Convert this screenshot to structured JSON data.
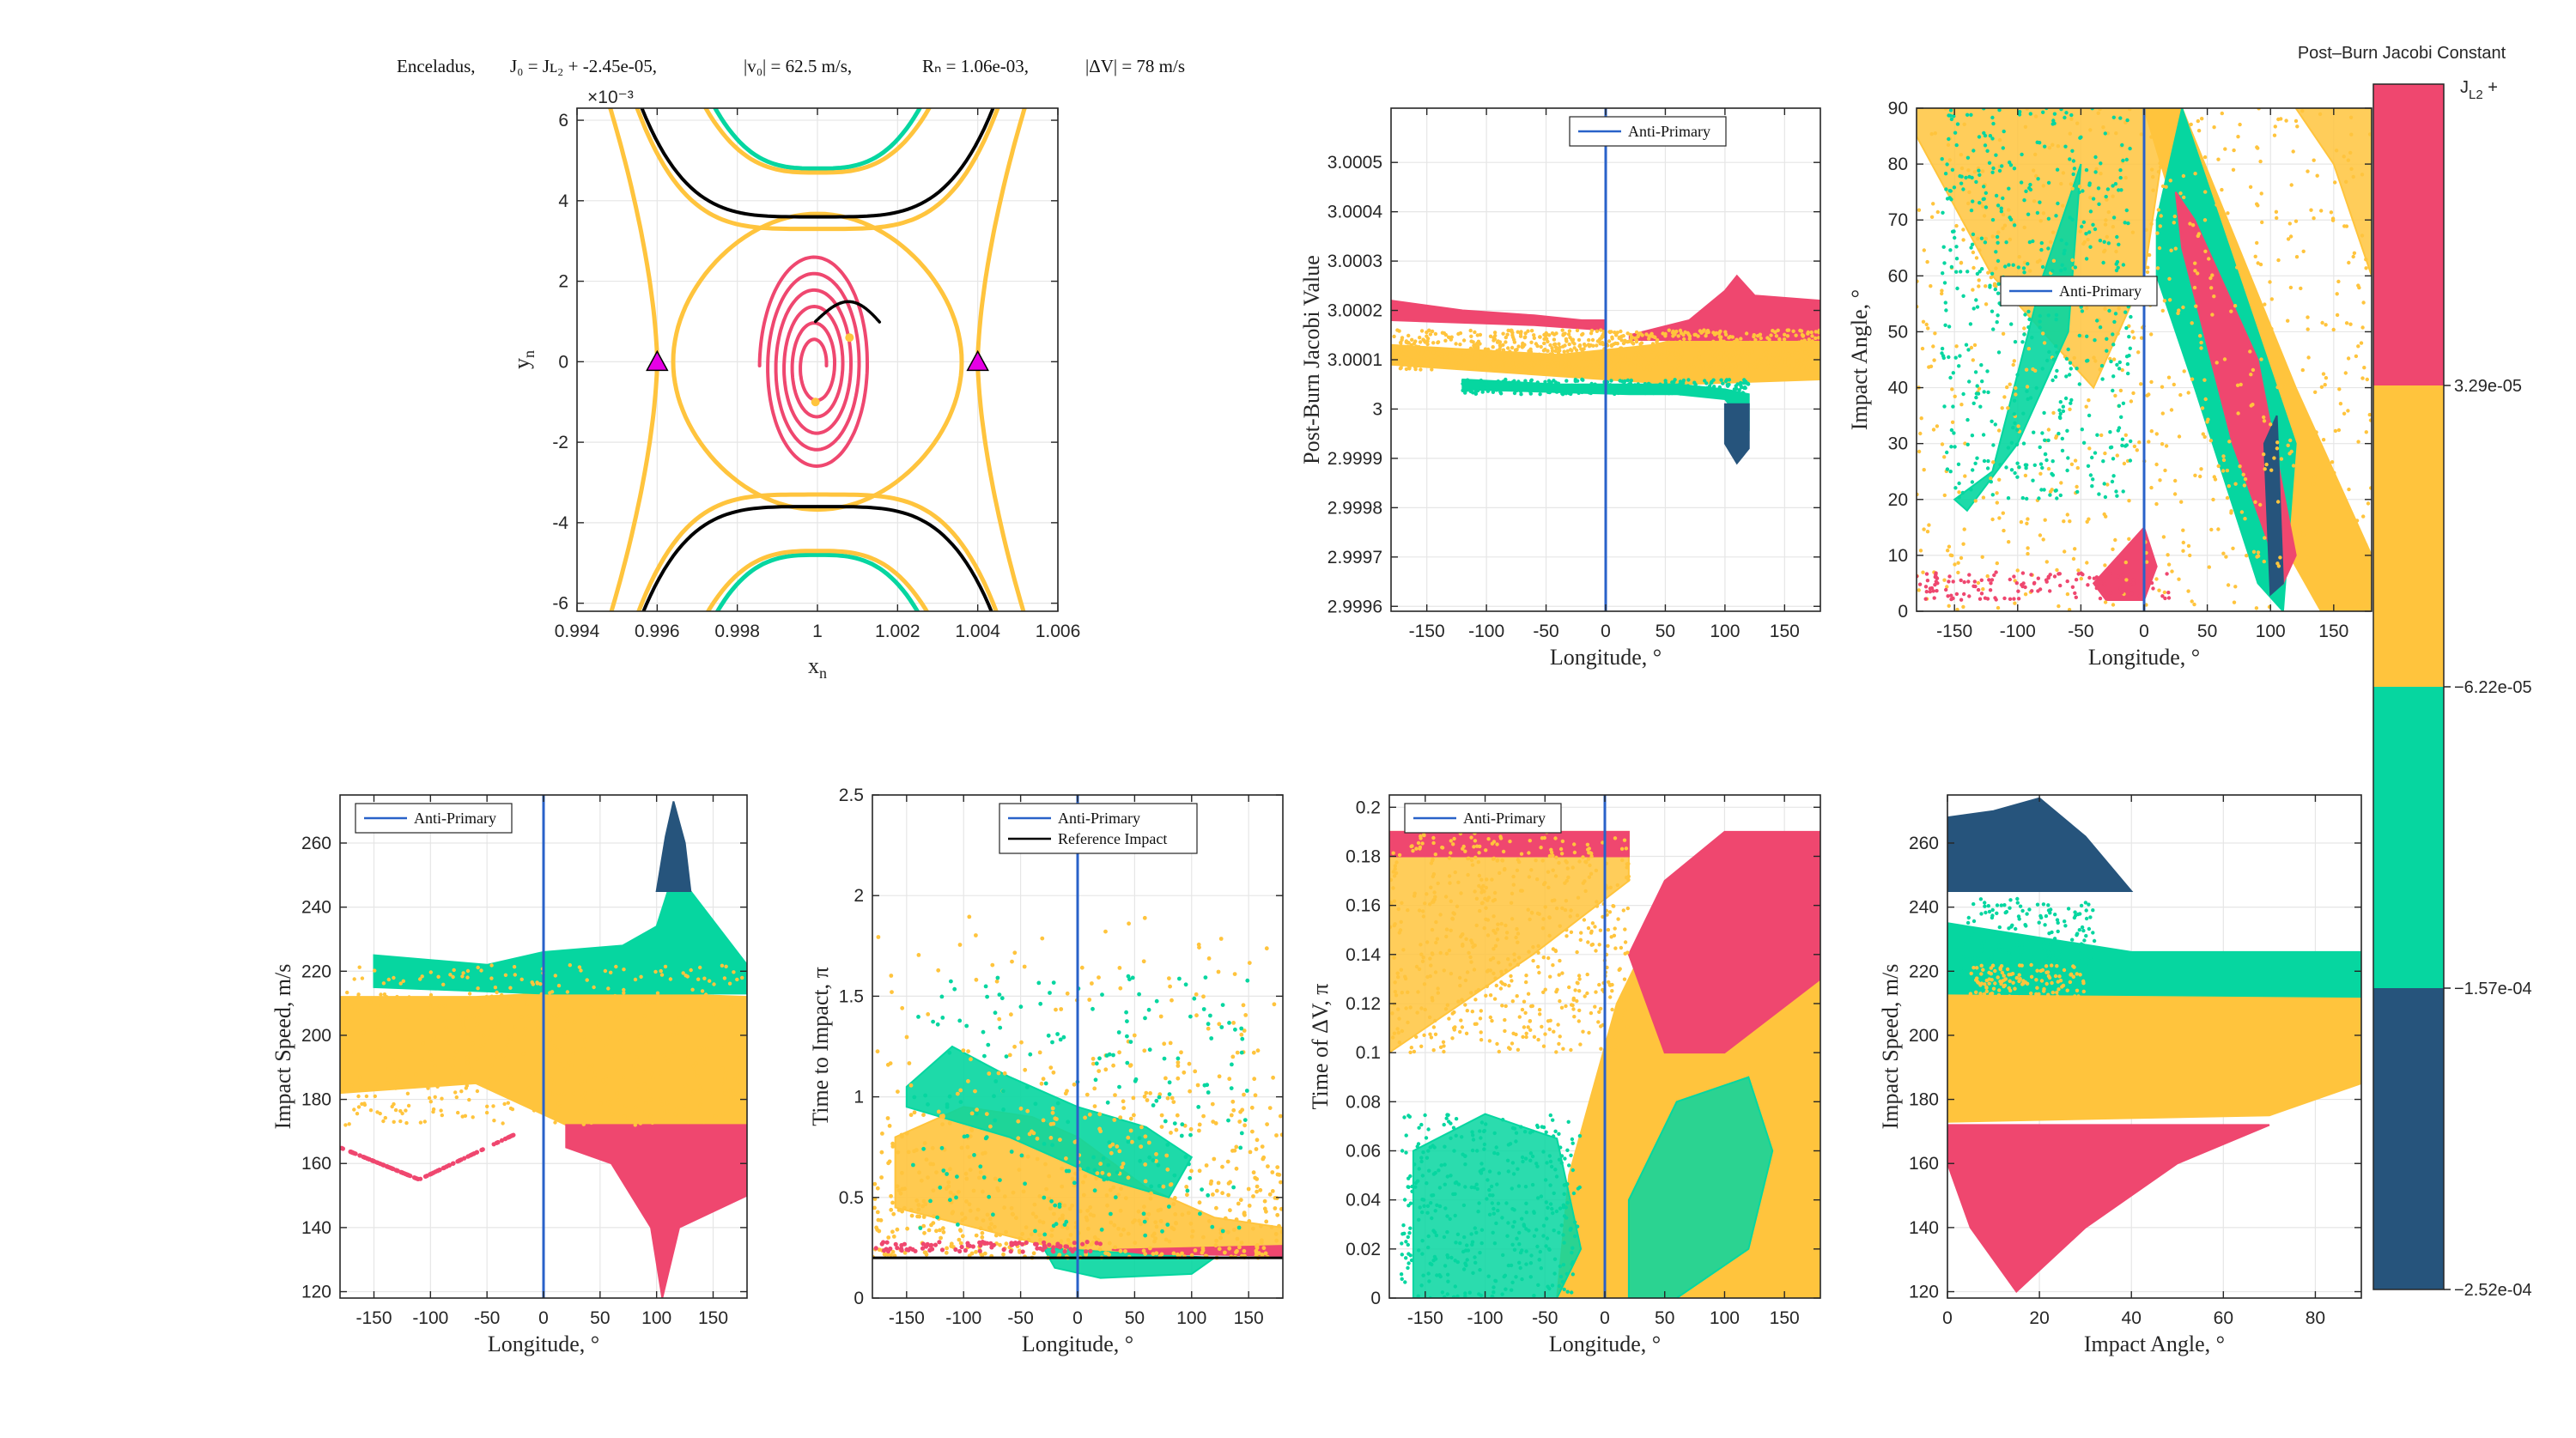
{
  "colors": {
    "magenta": "#EF476F",
    "yellow": "#FFC43D",
    "teal": "#06D6A0",
    "navy": "#26547C",
    "axis_blue": "#2962C9",
    "grid": "#E6E6E6",
    "black": "#000000",
    "triangle": "#E600E6"
  },
  "colorbar": {
    "title": "Post–Burn Jacobi Constant",
    "top_label": "J",
    "top_label_sub": "L2",
    "top_label_suffix": " +",
    "bands": [
      {
        "color": "#EF476F",
        "label": "3.29e-05"
      },
      {
        "color": "#FFC43D",
        "label": "−6.22e-05"
      },
      {
        "color": "#06D6A0",
        "label": "−1.57e-04"
      },
      {
        "color": "#26547C",
        "label": "−2.52e-04"
      }
    ]
  },
  "chart_data": [
    {
      "id": "orbit",
      "type": "line",
      "title_parts": {
        "body": "Enceladus,",
        "j0": "J₀ = Jʟ₂ + -2.45e-05,",
        "v0": "|v₀| = 62.5 m/s,",
        "rn": "Rₙ = 1.06e-03,",
        "dv": "|ΔV| = 78 m/s"
      },
      "xlabel": "x",
      "xlabel_sub": "n",
      "ylabel": "y",
      "ylabel_sub": "n",
      "exponent_label": "×10⁻³",
      "xlim": [
        0.994,
        1.006
      ],
      "ylim": [
        -0.0062,
        0.0063
      ],
      "xticks": [
        0.994,
        0.996,
        0.998,
        1,
        1.002,
        1.004,
        1.006
      ],
      "xtick_labels": [
        "0.994",
        "0.996",
        "0.998",
        "1",
        "1.002",
        "1.004",
        "1.006"
      ],
      "yticks": [
        -6,
        -4,
        -2,
        0,
        2,
        4,
        6
      ],
      "ytick_labels": [
        "-6",
        "-4",
        "-2",
        "0",
        "2",
        "4",
        "6"
      ],
      "lagrange_points": [
        {
          "x": 0.996,
          "y": 0
        },
        {
          "x": 1.004,
          "y": 0
        }
      ],
      "spiral": {
        "center": [
          0.99995,
          -0.0001
        ],
        "r_start": 0.00055,
        "r_end": 0.0028,
        "turns": 5.5
      }
    },
    {
      "id": "jacobi_vs_lon",
      "type": "scatter",
      "xlabel": "Longitude, °",
      "ylabel": "Post-Burn Jacobi Value",
      "xlim": [
        -180,
        180
      ],
      "ylim": [
        2.99959,
        3.00061
      ],
      "xticks": [
        -150,
        -100,
        -50,
        0,
        50,
        100,
        150
      ],
      "yticks": [
        2.9996,
        2.9997,
        2.9998,
        2.9999,
        3,
        3.0001,
        3.0002,
        3.0003,
        3.0004,
        3.0005
      ],
      "ytick_labels": [
        "2.9996",
        "2.9997",
        "2.9998",
        "2.9999",
        "3",
        "3.0001",
        "3.0002",
        "3.0003",
        "3.0004",
        "3.0005"
      ],
      "legend": [
        "Anti-Primary"
      ],
      "vline_x": 0
    },
    {
      "id": "angle_vs_lon",
      "type": "scatter",
      "xlabel": "Longitude, °",
      "ylabel": "Impact Angle, °",
      "xlim": [
        -180,
        180
      ],
      "ylim": [
        0,
        90
      ],
      "xticks": [
        -150,
        -100,
        -50,
        0,
        50,
        100,
        150
      ],
      "yticks": [
        0,
        10,
        20,
        30,
        40,
        50,
        60,
        70,
        80,
        90
      ],
      "legend": [
        "Anti-Primary"
      ],
      "vline_x": 0
    },
    {
      "id": "speed_vs_lon",
      "type": "scatter",
      "xlabel": "Longitude, °",
      "ylabel": "Impact Speed, m/s",
      "xlim": [
        -180,
        180
      ],
      "ylim": [
        118,
        275
      ],
      "xticks": [
        -150,
        -100,
        -50,
        0,
        50,
        100,
        150
      ],
      "yticks": [
        120,
        140,
        160,
        180,
        200,
        220,
        240,
        260
      ],
      "legend": [
        "Anti-Primary"
      ],
      "vline_x": 0
    },
    {
      "id": "tti_vs_lon",
      "type": "scatter",
      "xlabel": "Longitude, °",
      "ylabel": "Time to Impact, π",
      "xlim": [
        -180,
        180
      ],
      "ylim": [
        0,
        2.5
      ],
      "xticks": [
        -150,
        -100,
        -50,
        0,
        50,
        100,
        150
      ],
      "yticks": [
        0,
        0.5,
        1,
        1.5,
        2,
        2.5
      ],
      "ytick_labels": [
        "0",
        "0.5",
        "1",
        "1.5",
        "2",
        "2.5"
      ],
      "legend": [
        "Anti-Primary",
        "Reference Impact"
      ],
      "vline_x": 0,
      "reference_y": 0.2
    },
    {
      "id": "tdv_vs_lon",
      "type": "scatter",
      "xlabel": "Longitude, °",
      "ylabel": "Time of ΔV, π",
      "xlim": [
        -180,
        180
      ],
      "ylim": [
        0,
        0.205
      ],
      "xticks": [
        -150,
        -100,
        -50,
        0,
        50,
        100,
        150
      ],
      "yticks": [
        0,
        0.02,
        0.04,
        0.06,
        0.08,
        0.1,
        0.12,
        0.14,
        0.16,
        0.18,
        0.2
      ],
      "ytick_labels": [
        "0",
        "0.02",
        "0.04",
        "0.06",
        "0.08",
        "0.1",
        "0.12",
        "0.14",
        "0.16",
        "0.18",
        "0.2"
      ],
      "legend": [
        "Anti-Primary"
      ],
      "vline_x": 0
    },
    {
      "id": "speed_vs_angle",
      "type": "scatter",
      "xlabel": "Impact Angle, °",
      "ylabel": "Impact Speed, m/s",
      "xlim": [
        0,
        90
      ],
      "ylim": [
        118,
        275
      ],
      "xticks": [
        0,
        20,
        40,
        60,
        80
      ],
      "yticks": [
        120,
        140,
        160,
        180,
        200,
        220,
        240,
        260
      ]
    }
  ]
}
